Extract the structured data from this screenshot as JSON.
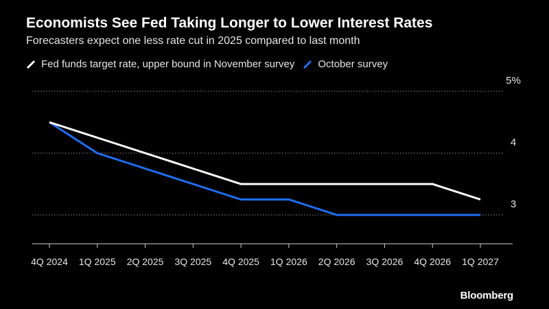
{
  "header": {
    "title": "Economists See Fed Taking Longer to Lower Interest Rates",
    "subtitle": "Forecasters expect one less rate cut in 2025 compared to last month"
  },
  "legend": [
    {
      "label": "Fed funds target rate, upper bound in November survey",
      "color": "#ffffff"
    },
    {
      "label": "October survey",
      "color": "#1f6ef5"
    }
  ],
  "source": "Bloomberg",
  "chart_data": {
    "type": "line",
    "title": "Economists See Fed Taking Longer to Lower Interest Rates",
    "subtitle": "Forecasters expect one less rate cut in 2025 compared to last month",
    "xlabel": "",
    "ylabel": "",
    "categories": [
      "4Q 2024",
      "1Q 2025",
      "2Q 2025",
      "3Q 2025",
      "4Q 2025",
      "1Q 2026",
      "2Q 2026",
      "3Q 2026",
      "4Q 2026",
      "1Q 2027"
    ],
    "series": [
      {
        "name": "Fed funds target rate, upper bound in November survey",
        "color": "#ffffff",
        "values": [
          4.5,
          4.25,
          4.0,
          3.75,
          3.5,
          3.5,
          3.5,
          3.5,
          3.5,
          3.25
        ]
      },
      {
        "name": "October survey",
        "color": "#1f6ef5",
        "values": [
          4.5,
          4.0,
          3.75,
          3.5,
          3.25,
          3.25,
          3.0,
          3.0,
          3.0,
          3.0
        ]
      }
    ],
    "ylim": [
      2.5,
      5.0
    ],
    "yticks": [
      3,
      4,
      5
    ],
    "ytick_labels": [
      "3",
      "4",
      "5%"
    ],
    "grid": true,
    "legend_position": "top-left"
  }
}
